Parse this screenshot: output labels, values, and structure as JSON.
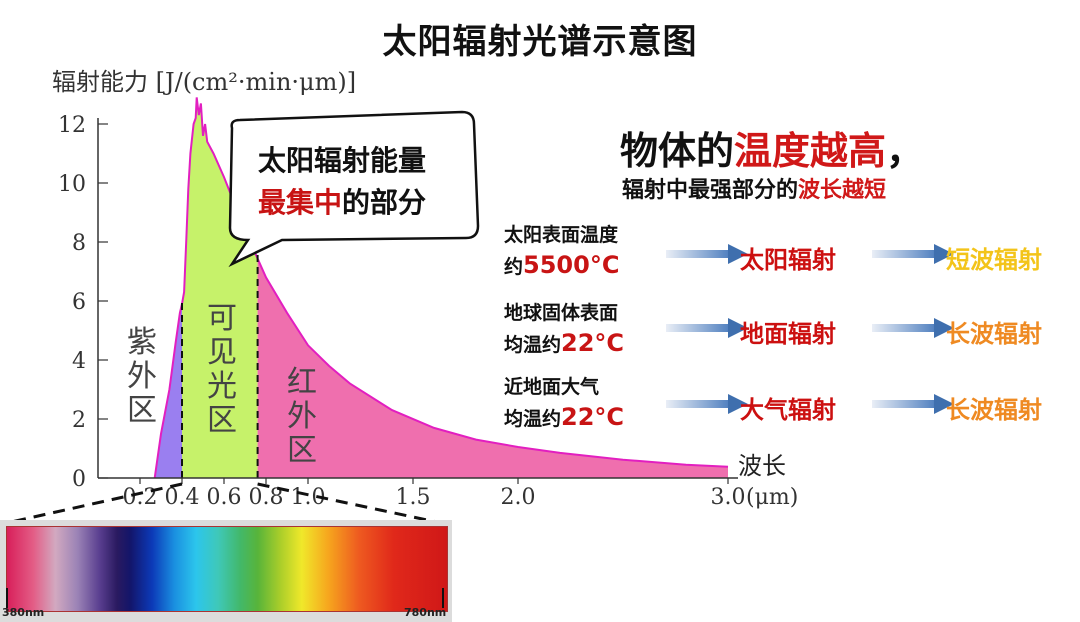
{
  "title": "太阳辐射光谱示意图",
  "chart_data": {
    "type": "area",
    "ylabel": "辐射能力 [J/(cm²·min·μm)]",
    "xlabel": "波长",
    "x_unit": "(μm)",
    "y_ticks": [
      "0",
      "2",
      "4",
      "6",
      "8",
      "10",
      "12"
    ],
    "x_ticks": [
      {
        "value": 0.2,
        "label": "0.2"
      },
      {
        "value": 0.4,
        "label": "0.4"
      },
      {
        "value": 0.6,
        "label": "0.6"
      },
      {
        "value": 0.8,
        "label": "0.8"
      },
      {
        "value": 1.0,
        "label": "1.0"
      },
      {
        "value": 1.5,
        "label": "1.5"
      },
      {
        "value": 2.0,
        "label": "2.0"
      },
      {
        "value": 3.0,
        "label": "3.0"
      }
    ],
    "xlim": [
      0,
      3.05
    ],
    "ylim": [
      0,
      12.8
    ],
    "curve": [
      [
        0.27,
        0.0
      ],
      [
        0.3,
        1.5
      ],
      [
        0.34,
        3.0
      ],
      [
        0.37,
        4.6
      ],
      [
        0.39,
        5.6
      ],
      [
        0.4,
        5.9
      ],
      [
        0.41,
        6.3
      ],
      [
        0.42,
        8.0
      ],
      [
        0.43,
        9.8
      ],
      [
        0.44,
        11.0
      ],
      [
        0.455,
        12.0
      ],
      [
        0.465,
        12.2
      ],
      [
        0.47,
        12.9
      ],
      [
        0.48,
        12.3
      ],
      [
        0.49,
        12.7
      ],
      [
        0.5,
        11.6
      ],
      [
        0.51,
        12.0
      ],
      [
        0.52,
        11.4
      ],
      [
        0.55,
        11.0
      ],
      [
        0.6,
        10.2
      ],
      [
        0.65,
        9.3
      ],
      [
        0.7,
        8.4
      ],
      [
        0.75,
        7.6
      ],
      [
        0.8,
        6.8
      ],
      [
        0.9,
        5.6
      ],
      [
        1.0,
        4.5
      ],
      [
        1.1,
        3.8
      ],
      [
        1.2,
        3.2
      ],
      [
        1.4,
        2.3
      ],
      [
        1.6,
        1.7
      ],
      [
        1.8,
        1.3
      ],
      [
        2.0,
        1.05
      ],
      [
        2.2,
        0.85
      ],
      [
        2.5,
        0.62
      ],
      [
        2.8,
        0.45
      ],
      [
        3.0,
        0.38
      ]
    ],
    "regions": [
      {
        "name": "紫外区",
        "from": 0.27,
        "to": 0.4,
        "color": "#9a7ff0"
      },
      {
        "name": "可见光区",
        "from": 0.4,
        "to": 0.76,
        "color": "#c6f26a"
      },
      {
        "name": "红外区",
        "from": 0.76,
        "to": 3.0,
        "color": "#ef6fae"
      }
    ],
    "region_labels": {
      "uv": "紫外区",
      "visible": "可见光区",
      "ir": "红外区"
    }
  },
  "bubble": {
    "line1": "太阳辐射能量",
    "line2_red": "最集中",
    "line2_rest": "的部分"
  },
  "headline": {
    "a": "物体的",
    "b_red": "温度越高",
    "c": "，"
  },
  "subline": {
    "a": "辐射中最强部分的",
    "b_red": "波长越短"
  },
  "rows": [
    {
      "desc1": "太阳表面温度",
      "desc2": "约",
      "temp": "5500°C",
      "mid": "太阳辐射",
      "result": "短波辐射",
      "result_color": "#f3c41a"
    },
    {
      "desc1": "地球固体表面",
      "desc2": "均温约",
      "temp": "22°C",
      "mid": "地面辐射",
      "result": "长波辐射",
      "result_color": "#ef8a22"
    },
    {
      "desc1": "近地面大气",
      "desc2": "均温约",
      "temp": "22°C",
      "mid": "大气辐射",
      "result": "长波辐射",
      "result_color": "#ef8a22"
    }
  ],
  "spectrum": {
    "left_label": "380nm",
    "right_label": "780nm"
  },
  "colors": {
    "red": "#c81414",
    "mid_red": "#cc1010",
    "arrow": "#3f6fae"
  }
}
